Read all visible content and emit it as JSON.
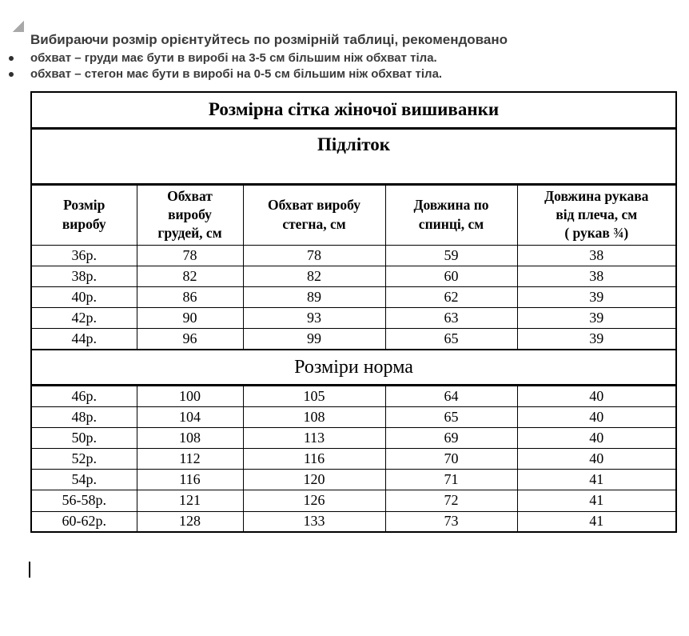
{
  "intro": {
    "heading": "Вибираючи розмір орієнтуйтесь по розмірній таблиці, рекомендовано",
    "bullets": [
      "обхват – груди має бути в виробі на 3-5 см більшим ніж обхват тіла.",
      "обхват – стегон має бути в виробі на 0-5 см більшим ніж обхват тіла."
    ]
  },
  "table": {
    "title": "Розмірна сітка жіночої вишиванки",
    "columns": [
      "Розмір\nвиробу",
      "Обхват\nвиробу\nгрудей, см",
      "Обхват виробу\nстегна, см",
      "Довжина по\nспинці, см",
      "Довжина рукава\nвід плеча, см\n( рукав ¾)"
    ],
    "sections": [
      {
        "label": "Підліток",
        "rows": [
          [
            "36р.",
            "78",
            "78",
            "59",
            "38"
          ],
          [
            "38р.",
            "82",
            "82",
            "60",
            "38"
          ],
          [
            "40р.",
            "86",
            "89",
            "62",
            "39"
          ],
          [
            "42р.",
            "90",
            "93",
            "63",
            "39"
          ],
          [
            "44р.",
            "96",
            "99",
            "65",
            "39"
          ]
        ]
      },
      {
        "label": "Розміри норма",
        "rows": [
          [
            "46р.",
            "100",
            "105",
            "64",
            "40"
          ],
          [
            "48р.",
            "104",
            "108",
            "65",
            "40"
          ],
          [
            "50р.",
            "108",
            "113",
            "69",
            "40"
          ],
          [
            "52р.",
            "112",
            "116",
            "70",
            "40"
          ],
          [
            "54р.",
            "116",
            "120",
            "71",
            "41"
          ],
          [
            "56-58р.",
            "121",
            "126",
            "72",
            "41"
          ],
          [
            "60-62р.",
            "128",
            "133",
            "73",
            "41"
          ]
        ]
      }
    ]
  },
  "colors": {
    "intro_text": "#3b3b3b",
    "table_text": "#000000",
    "table_border": "#000000",
    "triangle": "#a8a8a8",
    "background": "#ffffff"
  }
}
